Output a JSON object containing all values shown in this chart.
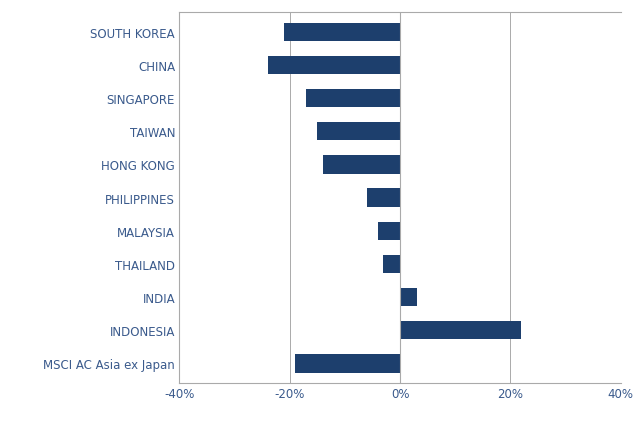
{
  "categories": [
    "MSCI AC Asia ex Japan",
    "INDONESIA",
    "INDIA",
    "THAILAND",
    "MALAYSIA",
    "PHILIPPINES",
    "HONG KONG",
    "TAIWAN",
    "SINGAPORE",
    "CHINA",
    "SOUTH KOREA"
  ],
  "values": [
    -19,
    22,
    3,
    -3,
    -4,
    -6,
    -14,
    -15,
    -17,
    -24,
    -21
  ],
  "bar_color": "#1d3f6d",
  "label_color": "#3a5a8c",
  "tick_color": "#3a5a8c",
  "axis_color": "#aaaaaa",
  "background_color": "#ffffff",
  "xlim": [
    -40,
    40
  ],
  "xticks": [
    -40,
    -20,
    0,
    20,
    40
  ],
  "xtick_labels": [
    "-40%",
    "-20%",
    "0%",
    "20%",
    "40%"
  ],
  "bar_height": 0.55,
  "figsize": [
    6.4,
    4.27
  ],
  "dpi": 100,
  "label_fontsize": 8.5,
  "tick_fontsize": 8.5
}
